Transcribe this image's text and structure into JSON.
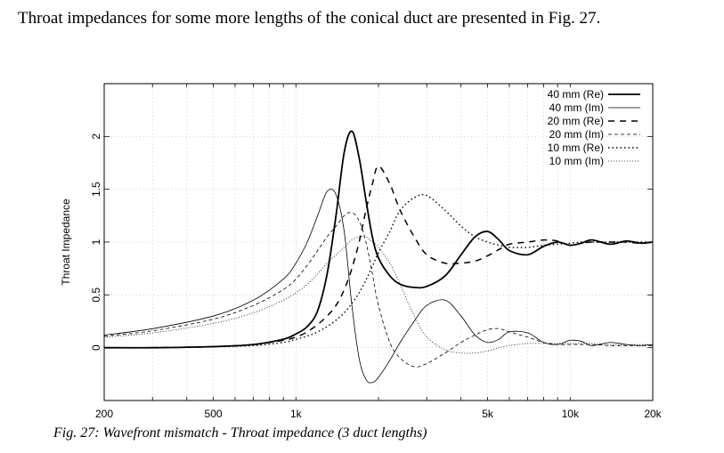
{
  "text": {
    "intro": "Throat impedances for some more lengths of the conical duct are presented in Fig. 27.",
    "caption": "Fig. 27: Wavefront mismatch - Throat impedance (3 duct lengths)"
  },
  "chart_data": {
    "type": "line",
    "title": "",
    "xlabel": "",
    "ylabel": "Throat Impedance",
    "xscale": "log",
    "xlim": [
      200,
      20000
    ],
    "ylim": [
      -0.5,
      2.5
    ],
    "grid": true,
    "legend": "top-right",
    "x_ticks": [
      {
        "value": 200,
        "label": "200"
      },
      {
        "value": 500,
        "label": "500"
      },
      {
        "value": 1000,
        "label": "1k"
      },
      {
        "value": 5000,
        "label": "5k"
      },
      {
        "value": 10000,
        "label": "10k"
      },
      {
        "value": 20000,
        "label": "20k"
      }
    ],
    "y_ticks": [
      {
        "value": 0,
        "label": "0"
      },
      {
        "value": 0.5,
        "label": "0.5"
      },
      {
        "value": 1,
        "label": "1"
      },
      {
        "value": 1.5,
        "label": "1.5"
      },
      {
        "value": 2,
        "label": "2"
      }
    ],
    "series": [
      {
        "name": "40 mm (Re)",
        "style": "solid-bold",
        "x": [
          200,
          300,
          500,
          700,
          900,
          1000,
          1100,
          1200,
          1300,
          1400,
          1500,
          1600,
          1700,
          1800,
          1900,
          2000,
          2200,
          2400,
          2700,
          3000,
          3500,
          4000,
          4500,
          5000,
          5500,
          6000,
          7000,
          8000,
          9000,
          10000,
          11000,
          12000,
          14000,
          16000,
          18000,
          20000
        ],
        "values": [
          0,
          0.0,
          0.01,
          0.03,
          0.08,
          0.13,
          0.2,
          0.35,
          0.7,
          1.25,
          1.85,
          2.05,
          1.8,
          1.4,
          1.05,
          0.85,
          0.68,
          0.6,
          0.57,
          0.58,
          0.68,
          0.88,
          1.05,
          1.1,
          1.02,
          0.92,
          0.88,
          0.96,
          1.0,
          0.97,
          0.99,
          1.02,
          0.98,
          1.01,
          0.99,
          1.0
        ]
      },
      {
        "name": "40 mm (Im)",
        "style": "solid-thin",
        "x": [
          200,
          300,
          500,
          700,
          900,
          1000,
          1100,
          1200,
          1300,
          1400,
          1500,
          1600,
          1700,
          1800,
          1900,
          2000,
          2200,
          2400,
          2700,
          3000,
          3500,
          4000,
          4500,
          5000,
          5500,
          6000,
          7000,
          8000,
          9000,
          10000,
          11000,
          12000,
          14000,
          16000,
          18000,
          20000
        ],
        "values": [
          0.12,
          0.18,
          0.3,
          0.45,
          0.65,
          0.8,
          1.0,
          1.25,
          1.48,
          1.45,
          1.1,
          0.4,
          -0.1,
          -0.3,
          -0.33,
          -0.28,
          -0.12,
          0.05,
          0.25,
          0.4,
          0.45,
          0.3,
          0.12,
          0.05,
          0.08,
          0.15,
          0.14,
          0.05,
          0.03,
          0.07,
          0.06,
          0.02,
          0.05,
          0.03,
          0.02,
          0.03
        ]
      },
      {
        "name": "20 mm (Re)",
        "style": "dashed-bold",
        "x": [
          200,
          300,
          500,
          700,
          900,
          1000,
          1100,
          1200,
          1300,
          1400,
          1500,
          1600,
          1700,
          1800,
          1900,
          2000,
          2200,
          2400,
          2700,
          3000,
          3500,
          4000,
          4500,
          5000,
          5500,
          6000,
          7000,
          8000,
          9000,
          10000,
          11000,
          12000,
          14000,
          16000,
          18000,
          20000
        ],
        "values": [
          0,
          0.0,
          0.01,
          0.03,
          0.07,
          0.1,
          0.15,
          0.22,
          0.3,
          0.4,
          0.55,
          0.75,
          1.0,
          1.3,
          1.55,
          1.72,
          1.55,
          1.3,
          1.05,
          0.88,
          0.8,
          0.8,
          0.82,
          0.87,
          0.93,
          0.98,
          1.0,
          1.02,
          1.01,
          0.97,
          0.99,
          1.0,
          1.0,
          1.0,
          0.99,
          1.0
        ]
      },
      {
        "name": "20 mm (Im)",
        "style": "dashed-thin",
        "x": [
          200,
          300,
          500,
          700,
          900,
          1000,
          1100,
          1200,
          1300,
          1400,
          1500,
          1600,
          1700,
          1800,
          1900,
          2000,
          2200,
          2400,
          2700,
          3000,
          3500,
          4000,
          4500,
          5000,
          5500,
          6000,
          7000,
          8000,
          9000,
          10000,
          11000,
          12000,
          14000,
          16000,
          18000,
          20000
        ],
        "values": [
          0.11,
          0.16,
          0.27,
          0.4,
          0.55,
          0.65,
          0.78,
          0.92,
          1.05,
          1.15,
          1.25,
          1.28,
          1.2,
          1.0,
          0.7,
          0.4,
          0.05,
          -0.1,
          -0.18,
          -0.15,
          -0.05,
          0.05,
          0.12,
          0.17,
          0.18,
          0.15,
          0.1,
          0.05,
          0.03,
          0.03,
          0.03,
          0.03,
          0.02,
          0.02,
          0.02,
          0.02
        ]
      },
      {
        "name": "10 mm (Re)",
        "style": "dotted-bold",
        "x": [
          200,
          300,
          500,
          700,
          900,
          1000,
          1100,
          1200,
          1300,
          1400,
          1500,
          1600,
          1700,
          1800,
          1900,
          2000,
          2200,
          2400,
          2700,
          3000,
          3500,
          4000,
          4500,
          5000,
          5500,
          6000,
          7000,
          8000,
          9000,
          10000,
          11000,
          12000,
          14000,
          16000,
          18000,
          20000
        ],
        "values": [
          0,
          0.0,
          0.01,
          0.02,
          0.05,
          0.08,
          0.11,
          0.15,
          0.2,
          0.26,
          0.33,
          0.42,
          0.52,
          0.64,
          0.77,
          0.9,
          1.1,
          1.3,
          1.42,
          1.44,
          1.3,
          1.15,
          1.05,
          1.0,
          0.97,
          0.95,
          0.95,
          0.97,
          0.98,
          0.99,
          1.0,
          1.0,
          1.0,
          1.0,
          1.0,
          1.0
        ]
      },
      {
        "name": "10 mm (Im)",
        "style": "dotted-thin",
        "x": [
          200,
          300,
          500,
          700,
          900,
          1000,
          1100,
          1200,
          1300,
          1400,
          1500,
          1600,
          1700,
          1800,
          1900,
          2000,
          2200,
          2400,
          2700,
          3000,
          3500,
          4000,
          4500,
          5000,
          5500,
          6000,
          7000,
          8000,
          9000,
          10000,
          11000,
          12000,
          14000,
          16000,
          18000,
          20000
        ],
        "values": [
          0.1,
          0.14,
          0.23,
          0.33,
          0.45,
          0.52,
          0.6,
          0.7,
          0.8,
          0.88,
          0.95,
          1.02,
          1.05,
          1.05,
          1.0,
          0.95,
          0.8,
          0.6,
          0.3,
          0.1,
          -0.02,
          -0.05,
          -0.05,
          -0.03,
          0.0,
          0.02,
          0.04,
          0.04,
          0.04,
          0.04,
          0.04,
          0.04,
          0.03,
          0.03,
          0.03,
          0.03
        ]
      }
    ]
  }
}
